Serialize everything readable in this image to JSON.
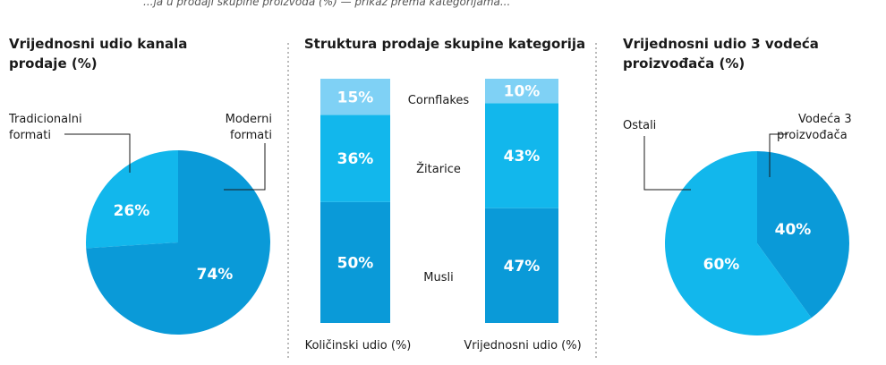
{
  "header_fragment": "...ja u prodaji skupine proizvoda (%) — prikaz prema kategorijama...",
  "colors": {
    "dark": "#0a9ad8",
    "mid": "#12b7ec",
    "light": "#7fd1f5"
  },
  "chart_data": [
    {
      "type": "pie",
      "title_lines": [
        "Vrijednosni udio kanala",
        "prodaje (%)"
      ],
      "slices": [
        {
          "name_lines": [
            "Tradicionalni",
            "formati"
          ],
          "value": 26,
          "label": "26%",
          "color": "#12b7ec"
        },
        {
          "name_lines": [
            "Moderni",
            "formati"
          ],
          "value": 74,
          "label": "74%",
          "color": "#0a9ad8"
        }
      ]
    },
    {
      "type": "bar",
      "stacked": true,
      "title": "Struktura prodaje skupine kategorija",
      "categories": [
        "Količinski udio (%)",
        "Vrijednosni udio (%)"
      ],
      "series": [
        {
          "name": "Musli",
          "values": [
            50,
            47
          ],
          "labels": [
            "50%",
            "47%"
          ],
          "color": "#0a9ad8"
        },
        {
          "name": "Žitarice",
          "values": [
            36,
            43
          ],
          "labels": [
            "36%",
            "43%"
          ],
          "color": "#12b7ec"
        },
        {
          "name": "Cornflakes",
          "values": [
            15,
            10
          ],
          "labels": [
            "15%",
            "10%"
          ],
          "color": "#7fd1f5"
        }
      ]
    },
    {
      "type": "pie",
      "title_lines": [
        "Vrijednosni udio 3 vodeća",
        "proizvođača (%)"
      ],
      "slices": [
        {
          "name_lines": [
            "Vodeća 3",
            "proizvođača"
          ],
          "value": 40,
          "label": "40%",
          "color": "#0a9ad8"
        },
        {
          "name_lines": [
            "Ostali"
          ],
          "value": 60,
          "label": "60%",
          "color": "#12b7ec"
        }
      ]
    }
  ]
}
